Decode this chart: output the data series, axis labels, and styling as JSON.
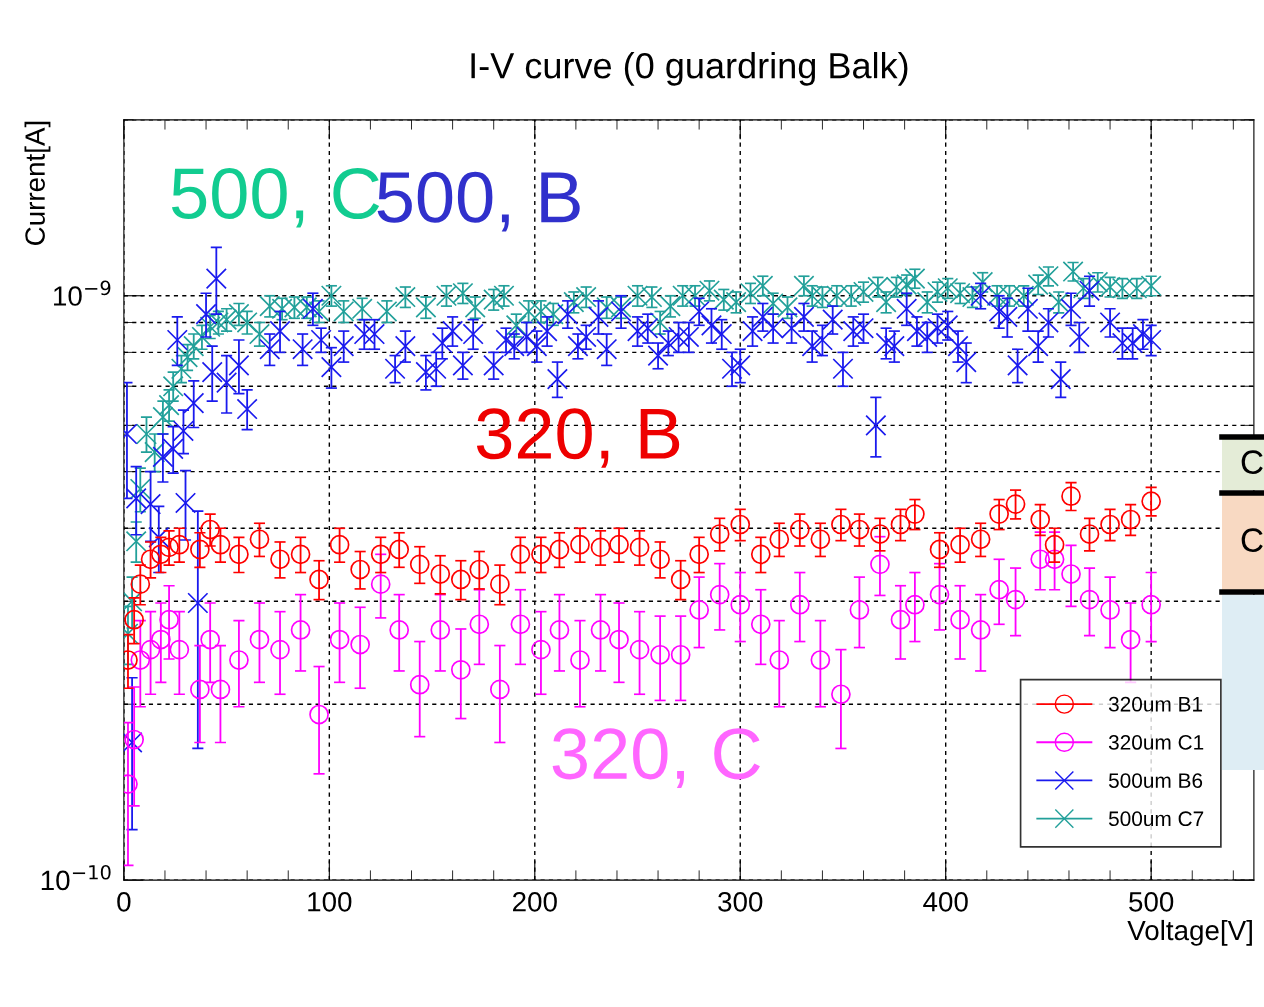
{
  "chart_data": {
    "type": "scatter",
    "title": "I-V curve (0 guardring Balk)",
    "xlabel": "Voltage[V]",
    "ylabel": "Current[A]",
    "log": "y",
    "grid": true,
    "legend": "bottom right",
    "xlim": [
      0,
      550
    ],
    "xticks": [
      0,
      100,
      200,
      300,
      400,
      500,
      {
        "value": 20,
        "label": null
      },
      {
        "value": 40,
        "label": null
      },
      {
        "value": 60,
        "label": null
      },
      {
        "value": 80,
        "label": null
      },
      {
        "value": 120,
        "label": null
      },
      {
        "value": 140,
        "label": null
      },
      {
        "value": 160,
        "label": null
      },
      {
        "value": 180,
        "label": null
      },
      {
        "value": 220,
        "label": null
      },
      {
        "value": 240,
        "label": null
      },
      {
        "value": 260,
        "label": null
      },
      {
        "value": 280,
        "label": null
      },
      {
        "value": 320,
        "label": null
      },
      {
        "value": 340,
        "label": null
      },
      {
        "value": 360,
        "label": null
      },
      {
        "value": 380,
        "label": null
      },
      {
        "value": 420,
        "label": null
      },
      {
        "value": 440,
        "label": null
      },
      {
        "value": 460,
        "label": null
      },
      {
        "value": 480,
        "label": null
      },
      {
        "value": 520,
        "label": null
      },
      {
        "value": 540,
        "label": null
      }
    ],
    "ylim": [
      1e-10,
      2e-09
    ],
    "yticks": [
      {
        "value": 1e-10,
        "label": "10$^{−10}$"
      },
      {
        "value": 1e-09,
        "label": "10$^{−9}$"
      },
      {
        "value": 2e-10,
        "label": null
      },
      {
        "value": 3e-10,
        "label": null
      },
      {
        "value": 4e-10,
        "label": null
      },
      {
        "value": 5e-10,
        "label": null
      },
      {
        "value": 6e-10,
        "label": null
      },
      {
        "value": 7e-10,
        "label": null
      },
      {
        "value": 8e-10,
        "label": null
      },
      {
        "value": 9e-10,
        "label": null
      },
      {
        "value": 2e-09,
        "label": null
      }
    ],
    "annotations": [
      "500, C",
      "500, B",
      "320, B",
      "320, C",
      "C",
      "C"
    ],
    "series": [
      {
        "name": "320um B1",
        "color": "#ff0000",
        "marker": "circle",
        "x": [
          2,
          5,
          8,
          13,
          18,
          22,
          27,
          37,
          42,
          47,
          56,
          66,
          76,
          86,
          95,
          105,
          115,
          125,
          134,
          144,
          154,
          164,
          173,
          183,
          193,
          203,
          212,
          222,
          232,
          241,
          251,
          261,
          271,
          280,
          290,
          300,
          310,
          319,
          329,
          339,
          349,
          358,
          368,
          378,
          385,
          397,
          407,
          417,
          426,
          434,
          446,
          453,
          461,
          470,
          480,
          490,
          500
        ],
        "values": [
          2.38e-10,
          2.79e-10,
          3.21e-10,
          3.54e-10,
          3.61e-10,
          3.71e-10,
          3.75e-10,
          3.68e-10,
          3.98e-10,
          3.75e-10,
          3.61e-10,
          3.83e-10,
          3.54e-10,
          3.61e-10,
          3.27e-10,
          3.75e-10,
          3.4e-10,
          3.61e-10,
          3.68e-10,
          3.47e-10,
          3.34e-10,
          3.27e-10,
          3.4e-10,
          3.21e-10,
          3.61e-10,
          3.61e-10,
          3.68e-10,
          3.75e-10,
          3.71e-10,
          3.75e-10,
          3.71e-10,
          3.54e-10,
          3.27e-10,
          3.61e-10,
          3.91e-10,
          4.06e-10,
          3.61e-10,
          3.83e-10,
          3.98e-10,
          3.83e-10,
          4.06e-10,
          3.98e-10,
          3.91e-10,
          4.06e-10,
          4.23e-10,
          3.68e-10,
          3.75e-10,
          3.83e-10,
          4.23e-10,
          4.4e-10,
          4.14e-10,
          3.75e-10,
          4.54e-10,
          3.91e-10,
          4.06e-10,
          4.14e-10,
          4.45e-10
        ],
        "errors": [
          2.5e-11,
          2.5e-11,
          2.5e-11,
          2.5e-11,
          2.5e-11,
          2.5e-11,
          2.5e-11,
          2.5e-11,
          2.5e-11,
          2.5e-11,
          2.5e-11,
          2.5e-11,
          2.5e-11,
          2.5e-11,
          2.5e-11,
          2.5e-11,
          2.5e-11,
          2.5e-11,
          2.5e-11,
          2.5e-11,
          2.5e-11,
          2.5e-11,
          2.5e-11,
          2.5e-11,
          2.5e-11,
          2.5e-11,
          2.5e-11,
          2.5e-11,
          2.5e-11,
          2.5e-11,
          2.5e-11,
          2.5e-11,
          2.5e-11,
          2.5e-11,
          2.5e-11,
          2.5e-11,
          2.5e-11,
          2.5e-11,
          2.5e-11,
          2.5e-11,
          2.5e-11,
          2.5e-11,
          2.5e-11,
          2.5e-11,
          2.5e-11,
          2.5e-11,
          2.5e-11,
          2.5e-11,
          2.5e-11,
          2.5e-11,
          2.5e-11,
          2.5e-11,
          2.5e-11,
          2.5e-11,
          2.5e-11,
          2.5e-11,
          2.5e-11
        ]
      },
      {
        "name": "320um C1",
        "color": "#ff00ff",
        "marker": "circle",
        "x": [
          2,
          5,
          8,
          13,
          18,
          22,
          27,
          37,
          42,
          47,
          56,
          66,
          76,
          86,
          95,
          105,
          115,
          125,
          134,
          144,
          154,
          164,
          173,
          183,
          193,
          203,
          212,
          222,
          232,
          241,
          251,
          261,
          271,
          280,
          290,
          300,
          310,
          319,
          329,
          339,
          349,
          358,
          368,
          378,
          385,
          397,
          407,
          417,
          426,
          434,
          446,
          453,
          461,
          470,
          480,
          490,
          500
        ],
        "values": [
          1.46e-10,
          1.74e-10,
          2.38e-10,
          2.48e-10,
          2.58e-10,
          2.79e-10,
          2.48e-10,
          2.12e-10,
          2.58e-10,
          2.12e-10,
          2.38e-10,
          2.58e-10,
          2.48e-10,
          2.68e-10,
          1.92e-10,
          2.58e-10,
          2.53e-10,
          3.21e-10,
          2.68e-10,
          2.16e-10,
          2.68e-10,
          2.29e-10,
          2.74e-10,
          2.12e-10,
          2.74e-10,
          2.48e-10,
          2.68e-10,
          2.38e-10,
          2.68e-10,
          2.58e-10,
          2.48e-10,
          2.43e-10,
          2.43e-10,
          2.9e-10,
          3.08e-10,
          2.96e-10,
          2.74e-10,
          2.38e-10,
          2.96e-10,
          2.38e-10,
          2.08e-10,
          2.9e-10,
          3.47e-10,
          2.79e-10,
          2.96e-10,
          3.08e-10,
          2.79e-10,
          2.68e-10,
          3.14e-10,
          3.02e-10,
          3.54e-10,
          3.54e-10,
          3.34e-10,
          3.02e-10,
          2.9e-10,
          2.58e-10,
          2.96e-10
        ],
        "errors": [
          4e-11,
          4e-11,
          4e-11,
          4e-11,
          4e-11,
          4e-11,
          4e-11,
          4e-11,
          4e-11,
          4e-11,
          4e-11,
          4e-11,
          4e-11,
          4e-11,
          4e-11,
          4e-11,
          4e-11,
          4e-11,
          4e-11,
          4e-11,
          4e-11,
          4e-11,
          4e-11,
          4e-11,
          4e-11,
          4e-11,
          4e-11,
          4e-11,
          4e-11,
          4e-11,
          4e-11,
          4e-11,
          4e-11,
          4e-11,
          4e-11,
          4e-11,
          4e-11,
          4e-11,
          4e-11,
          4e-11,
          4e-11,
          4e-11,
          4e-11,
          4e-11,
          4e-11,
          4e-11,
          4e-11,
          4e-11,
          4e-11,
          4e-11,
          4e-11,
          4e-11,
          4e-11,
          4e-11,
          4e-11,
          4e-11,
          4e-11
        ]
      },
      {
        "name": "500um B6",
        "color": "#1a1aee",
        "marker": "cross",
        "x": [
          1.5,
          4,
          6,
          13,
          17,
          19,
          24,
          26,
          29,
          30,
          34,
          36,
          40,
          43,
          45,
          50,
          56,
          60,
          71,
          76,
          87,
          92,
          96,
          101,
          107,
          117,
          122,
          132,
          137,
          147,
          152,
          155,
          160,
          165,
          170,
          180,
          186,
          190,
          196,
          201,
          206,
          211,
          216,
          221,
          225,
          231,
          235,
          242,
          250,
          255,
          260,
          265,
          270,
          275,
          280,
          286,
          291,
          296,
          300,
          306,
          311,
          316,
          325,
          331,
          335,
          340,
          345,
          350,
          355,
          360,
          366,
          371,
          375,
          381,
          386,
          391,
          396,
          401,
          406,
          410,
          417,
          426,
          430,
          435,
          440,
          445,
          450,
          456,
          461,
          465,
          470,
          480,
          486,
          491,
          496,
          500
        ],
        "values": [
          5.8e-10,
          1.72e-10,
          4.5e-10,
          4.4e-10,
          3.86e-10,
          5.3e-10,
          5.47e-10,
          8.4e-10,
          5.87e-10,
          4.42e-10,
          6.55e-10,
          2.98e-10,
          9.3e-10,
          7.4e-10,
          1.07e-09,
          7.1e-10,
          7.6e-10,
          6.4e-10,
          8.1e-10,
          8.7e-10,
          8.1e-10,
          9.5e-10,
          8.4e-10,
          7.55e-10,
          8.2e-10,
          8.6e-10,
          8.6e-10,
          7.5e-10,
          8.2e-10,
          7.4e-10,
          7.5e-10,
          8.3e-10,
          8.7e-10,
          7.6e-10,
          8.6e-10,
          7.6e-10,
          8.4e-10,
          8.2e-10,
          8.5e-10,
          8.2e-10,
          8.7e-10,
          7.2e-10,
          9.3e-10,
          8.2e-10,
          8.5e-10,
          9.2e-10,
          8.1e-10,
          9.4e-10,
          8.7e-10,
          8.8e-10,
          7.9e-10,
          8.3e-10,
          8.5e-10,
          8.5e-10,
          9.4e-10,
          8.9e-10,
          8.6e-10,
          7.5e-10,
          7.6e-10,
          8.7e-10,
          9.2e-10,
          8.8e-10,
          8.8e-10,
          9.2e-10,
          8.2e-10,
          8.4e-10,
          9.1e-10,
          7.5e-10,
          8.7e-10,
          8.8e-10,
          6e-10,
          8.3e-10,
          8.2e-10,
          9.5e-10,
          8.7e-10,
          8.5e-10,
          8.8e-10,
          8.9e-10,
          8.2e-10,
          7.7e-10,
          1e-09,
          9.4e-10,
          9.2e-10,
          7.6e-10,
          9.5e-10,
          8.2e-10,
          9e-10,
          7.2e-10,
          9.5e-10,
          8.5e-10,
          1.02e-09,
          9e-10,
          8.3e-10,
          8.3e-10,
          8.6e-10,
          8.4e-10
        ],
        "errors": [
          1.3e-10,
          5e-11,
          6e-11,
          6e-11,
          5e-11,
          5e-11,
          5e-11,
          8e-11,
          5e-11,
          6e-11,
          6e-11,
          1.3e-10,
          8e-11,
          8e-11,
          1.4e-10,
          8e-11,
          8e-11,
          5e-11,
          5e-11,
          7e-11,
          5e-11,
          6e-11,
          4e-11,
          6e-11,
          5e-11,
          5e-11,
          5e-11,
          4e-11,
          5e-11,
          5e-11,
          5e-11,
          5e-11,
          5e-11,
          4e-11,
          5e-11,
          4e-11,
          4e-11,
          4e-11,
          5e-11,
          5e-11,
          5e-11,
          5e-11,
          5e-11,
          4e-11,
          4e-11,
          6e-11,
          5e-11,
          6e-11,
          5e-11,
          5e-11,
          4e-11,
          4e-11,
          5e-11,
          5e-11,
          5e-11,
          6e-11,
          5e-11,
          5e-11,
          5e-11,
          5e-11,
          5e-11,
          5e-11,
          5e-11,
          5e-11,
          5e-11,
          5e-11,
          5e-11,
          5e-11,
          5e-11,
          5e-11,
          7e-11,
          5e-11,
          5e-11,
          6e-11,
          5e-11,
          5e-11,
          5e-11,
          5e-11,
          5e-11,
          6e-11,
          5e-11,
          6e-11,
          7e-11,
          5e-11,
          8e-11,
          5e-11,
          5e-11,
          5e-11,
          6e-11,
          5e-11,
          6e-11,
          5e-11,
          5e-11,
          5e-11,
          5e-11,
          5e-11
        ]
      },
      {
        "name": "500um C7",
        "color": "#22a09a",
        "marker": "cross",
        "x": [
          2,
          4,
          6,
          8,
          11,
          15,
          19,
          22,
          24,
          28,
          31,
          34,
          38,
          42,
          46,
          50,
          56,
          60,
          66,
          71,
          77,
          83,
          89,
          95,
          101,
          107,
          116,
          128,
          137,
          147,
          157,
          165,
          171,
          180,
          185,
          191,
          197,
          203,
          209,
          219,
          225,
          235,
          242,
          250,
          257,
          261,
          266,
          272,
          278,
          285,
          292,
          298,
          305,
          311,
          316,
          323,
          331,
          335,
          340,
          347,
          354,
          360,
          367,
          371,
          376,
          381,
          385,
          391,
          396,
          401,
          407,
          413,
          418,
          425,
          431,
          438,
          445,
          450,
          455,
          462,
          467,
          474,
          480,
          486,
          493,
          500
        ],
        "values": [
          2.64e-10,
          3e-10,
          3.8e-10,
          4.67e-10,
          5.8e-10,
          5.4e-10,
          6.2e-10,
          6.5e-10,
          7e-10,
          7.5e-10,
          7.85e-10,
          8.2e-10,
          8.5e-10,
          8.85e-10,
          9e-10,
          9.1e-10,
          9.3e-10,
          9e-10,
          8.6e-10,
          9.6e-10,
          9.5e-10,
          9.55e-10,
          9.55e-10,
          9.4e-10,
          1e-09,
          9.4e-10,
          9.5e-10,
          9.4e-10,
          9.95e-10,
          9.55e-10,
          1e-09,
          1.01e-09,
          9.55e-10,
          9.85e-10,
          1e-09,
          8.9e-10,
          9.4e-10,
          9.4e-10,
          9.3e-10,
          9.75e-10,
          9.95e-10,
          9.55e-10,
          9.55e-10,
          1e-09,
          9.95e-10,
          9e-10,
          9.6e-10,
          1e-09,
          1e-09,
          1.02e-09,
          9.85e-10,
          9.75e-10,
          1.01e-09,
          1.04e-09,
          9.7e-10,
          9.55e-10,
          1.04e-09,
          1e-09,
          9.95e-10,
          1e-09,
          1e-09,
          1.015e-09,
          1.035e-09,
          9.75e-10,
          1.035e-09,
          1.045e-09,
          1.07e-09,
          9.75e-10,
          1.015e-09,
          1.03e-09,
          1.01e-09,
          9.95e-10,
          1.055e-09,
          1e-09,
          1e-09,
          1e-09,
          1.045e-09,
          1.08e-09,
          9.75e-10,
          1.1e-09,
          1.03e-09,
          1.055e-09,
          1.035e-09,
          1.03e-09,
          1.03e-09,
          1.04e-09
        ],
        "errors": [
          3e-11,
          3e-11,
          3e-11,
          4e-11,
          4e-11,
          4e-11,
          4e-11,
          4e-11,
          4e-11,
          4e-11,
          4e-11,
          4e-11,
          4e-11,
          4e-11,
          4e-11,
          4e-11,
          4e-11,
          4e-11,
          4e-11,
          4e-11,
          4e-11,
          4e-11,
          4e-11,
          4e-11,
          4e-11,
          4e-11,
          4e-11,
          4e-11,
          4e-11,
          4e-11,
          4e-11,
          4e-11,
          4e-11,
          4e-11,
          4e-11,
          4e-11,
          4e-11,
          4e-11,
          4e-11,
          4e-11,
          4e-11,
          4e-11,
          4e-11,
          4e-11,
          4e-11,
          4e-11,
          4e-11,
          4e-11,
          4e-11,
          4e-11,
          4e-11,
          4e-11,
          4e-11,
          4e-11,
          4e-11,
          4e-11,
          4e-11,
          4e-11,
          4e-11,
          4e-11,
          4e-11,
          4e-11,
          4e-11,
          4e-11,
          4e-11,
          4e-11,
          4e-11,
          4e-11,
          4e-11,
          4e-11,
          4e-11,
          4e-11,
          4e-11,
          4e-11,
          4e-11,
          4e-11,
          4e-11,
          4e-11,
          4e-11,
          4e-11,
          4e-11,
          4e-11,
          4e-11,
          4e-11,
          4e-11,
          4e-11
        ]
      }
    ]
  }
}
